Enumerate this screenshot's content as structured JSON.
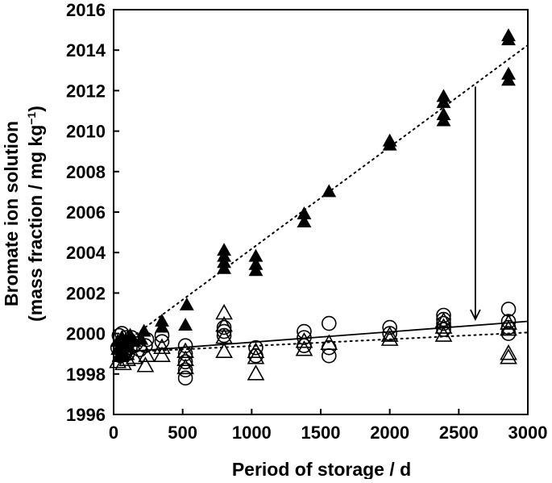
{
  "chart_data": {
    "type": "scatter",
    "xlabel": "Period of storage / d",
    "ylabel_line1": "Bromate ion solution",
    "ylabel_line2": "(mass fraction / mg kg",
    "ylabel_sup": "−1",
    "ylabel_close": ")",
    "xlim": [
      0,
      3000
    ],
    "ylim": [
      1996,
      2016
    ],
    "x_ticks": [
      "0",
      "500",
      "1000",
      "1500",
      "2000",
      "2500",
      "3000"
    ],
    "y_ticks": [
      "1996",
      "1998",
      "2000",
      "2002",
      "2004",
      "2006",
      "2008",
      "2010",
      "2012",
      "2014",
      "2016"
    ],
    "x_tick_values": [
      0,
      500,
      1000,
      1500,
      2000,
      2500,
      3000
    ],
    "y_tick_values": [
      1996,
      1998,
      2000,
      2002,
      2004,
      2006,
      2008,
      2010,
      2012,
      2014,
      2016
    ],
    "grid": false,
    "series": [
      {
        "marker": "filled-triangle",
        "points": [
          [
            30,
            1999.2
          ],
          [
            30,
            1999.6
          ],
          [
            40,
            1998.9
          ],
          [
            50,
            1999.3
          ],
          [
            60,
            1999.8
          ],
          [
            70,
            1999.0
          ],
          [
            80,
            1999.5
          ],
          [
            100,
            1999.4
          ],
          [
            120,
            1999.9
          ],
          [
            150,
            1999.6
          ],
          [
            200,
            1999.7
          ],
          [
            220,
            2000.1
          ],
          [
            350,
            2000.3
          ],
          [
            350,
            2000.6
          ],
          [
            520,
            2000.4
          ],
          [
            530,
            2001.4
          ],
          [
            800,
            2003.2
          ],
          [
            800,
            2003.5
          ],
          [
            800,
            2003.8
          ],
          [
            800,
            2004.1
          ],
          [
            1030,
            2003.1
          ],
          [
            1030,
            2003.4
          ],
          [
            1030,
            2003.8
          ],
          [
            1380,
            2005.5
          ],
          [
            1380,
            2005.9
          ],
          [
            1560,
            2007.0
          ],
          [
            2000,
            2009.3
          ],
          [
            2000,
            2009.5
          ],
          [
            2390,
            2010.5
          ],
          [
            2390,
            2010.8
          ],
          [
            2390,
            2011.4
          ],
          [
            2390,
            2011.7
          ],
          [
            2860,
            2012.5
          ],
          [
            2860,
            2012.8
          ],
          [
            2860,
            2014.5
          ],
          [
            2860,
            2014.7
          ]
        ]
      },
      {
        "marker": "open-triangle",
        "points": [
          [
            30,
            1998.6
          ],
          [
            50,
            1998.9
          ],
          [
            70,
            1998.5
          ],
          [
            90,
            1999.0
          ],
          [
            100,
            1998.7
          ],
          [
            150,
            1998.8
          ],
          [
            230,
            1998.4
          ],
          [
            240,
            1998.9
          ],
          [
            350,
            1998.9
          ],
          [
            350,
            1999.3
          ],
          [
            520,
            1998.3
          ],
          [
            520,
            1998.7
          ],
          [
            520,
            1999.1
          ],
          [
            800,
            1999.1
          ],
          [
            800,
            1999.8
          ],
          [
            800,
            2000.4
          ],
          [
            800,
            2001.0
          ],
          [
            1030,
            1998.0
          ],
          [
            1030,
            1998.8
          ],
          [
            1030,
            1999.1
          ],
          [
            1380,
            1999.2
          ],
          [
            1380,
            1999.6
          ],
          [
            1560,
            1999.5
          ],
          [
            2000,
            1999.7
          ],
          [
            2000,
            1999.9
          ],
          [
            2390,
            1999.9
          ],
          [
            2390,
            2000.3
          ],
          [
            2390,
            2000.6
          ],
          [
            2860,
            1998.8
          ],
          [
            2860,
            1999.0
          ],
          [
            2860,
            2000.2
          ],
          [
            2860,
            2000.5
          ]
        ]
      },
      {
        "marker": "open-circle",
        "points": [
          [
            30,
            1999.3
          ],
          [
            40,
            1999.9
          ],
          [
            50,
            1998.9
          ],
          [
            60,
            2000.0
          ],
          [
            70,
            1999.5
          ],
          [
            80,
            1999.1
          ],
          [
            90,
            1999.8
          ],
          [
            100,
            1999.0
          ],
          [
            110,
            1999.6
          ],
          [
            120,
            1999.3
          ],
          [
            130,
            1999.8
          ],
          [
            160,
            1999.5
          ],
          [
            190,
            1999.2
          ],
          [
            230,
            1999.4
          ],
          [
            240,
            1999.7
          ],
          [
            350,
            1999.6
          ],
          [
            350,
            1999.9
          ],
          [
            520,
            1997.8
          ],
          [
            520,
            1998.2
          ],
          [
            520,
            1998.6
          ],
          [
            520,
            1999.0
          ],
          [
            520,
            1999.4
          ],
          [
            800,
            1999.9
          ],
          [
            800,
            2000.1
          ],
          [
            800,
            2000.3
          ],
          [
            1030,
            1998.9
          ],
          [
            1030,
            1999.3
          ],
          [
            1380,
            1999.4
          ],
          [
            1380,
            1999.8
          ],
          [
            1380,
            2000.1
          ],
          [
            1560,
            1998.9
          ],
          [
            1560,
            1999.3
          ],
          [
            1560,
            2000.5
          ],
          [
            2000,
            2000.0
          ],
          [
            2000,
            2000.3
          ],
          [
            2390,
            2000.2
          ],
          [
            2390,
            2000.5
          ],
          [
            2390,
            2000.7
          ],
          [
            2390,
            2000.9
          ],
          [
            2860,
            2000.0
          ],
          [
            2860,
            2000.3
          ],
          [
            2860,
            2000.6
          ],
          [
            2860,
            2001.2
          ]
        ]
      }
    ],
    "trend_lines": [
      {
        "style": "dotted",
        "from": [
          0,
          1999.15
        ],
        "to": [
          3000,
          2014.25
        ]
      },
      {
        "style": "dotted",
        "from": [
          0,
          1999.05
        ],
        "to": [
          3000,
          2000.05
        ]
      },
      {
        "style": "solid",
        "from": [
          0,
          1999.05
        ],
        "to": [
          3000,
          2000.6
        ]
      }
    ],
    "annotations": [
      {
        "type": "arrow",
        "from": [
          2620,
          2012.2
        ],
        "to": [
          2620,
          2000.7
        ]
      }
    ]
  }
}
